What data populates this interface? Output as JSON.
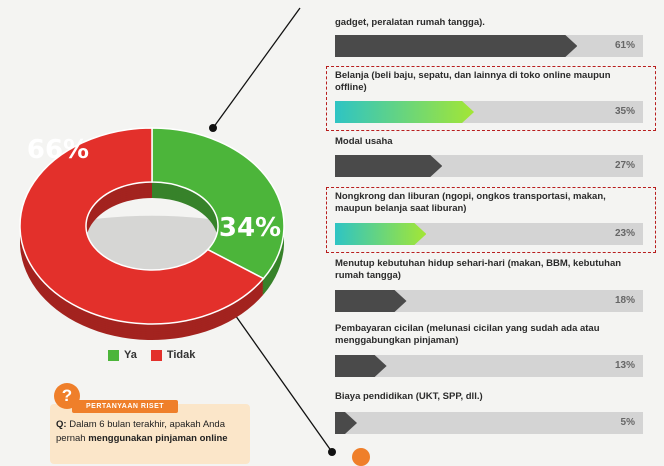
{
  "chart_data": [
    {
      "type": "pie",
      "subtype": "donut",
      "slices": [
        {
          "label": "Ya",
          "value": 34,
          "display": "34%",
          "color": "#4cb53a"
        },
        {
          "label": "Tidak",
          "value": 66,
          "display": "66%",
          "color": "#e3302b"
        }
      ],
      "legend": [
        {
          "label": "Ya",
          "color": "#4cb53a"
        },
        {
          "label": "Tidak",
          "color": "#e3302b"
        }
      ],
      "legend_placement": "bottom"
    },
    {
      "type": "bar",
      "orientation": "horizontal",
      "xlim": [
        0,
        100
      ],
      "bars": [
        {
          "label": "gadget, peralatan rumah tangga).",
          "value": 61,
          "display": "61%",
          "highlight": false
        },
        {
          "label": "Belanja (beli baju, sepatu, dan lainnya di toko online maupun offline)",
          "value": 35,
          "display": "35%",
          "highlight": true
        },
        {
          "label": "Modal usaha",
          "value": 27,
          "display": "27%",
          "highlight": false
        },
        {
          "label": "Nongkrong dan liburan (ngopi, ongkos transportasi, makan, maupun belanja saat liburan)",
          "value": 23,
          "display": "23%",
          "highlight": true
        },
        {
          "label": "Menutup kebutuhan hidup sehari-hari (makan, BBM, kebutuhan rumah tangga)",
          "value": 18,
          "display": "18%",
          "highlight": false
        },
        {
          "label": "Pembayaran cicilan (melunasi cicilan yang sudah ada atau menggabungkan pinjaman)",
          "value": 13,
          "display": "13%",
          "highlight": false
        },
        {
          "label": "Biaya pendidikan (UKT, SPP, dll.)",
          "value": 5,
          "display": "5%",
          "highlight": false
        }
      ],
      "colors": {
        "normal": "#4a4a4a",
        "highlight_start": "#2ec4c4",
        "highlight_end": "#a3e635",
        "track": "#d4d4d4"
      }
    }
  ],
  "question": {
    "badge": "?",
    "tag": "PERTANYAAN RISET",
    "prefix": "Q:",
    "text_plain": " Dalam 6 bulan terakhir, apakah Anda pernah ",
    "text_bold": "menggunakan pinjaman online"
  }
}
